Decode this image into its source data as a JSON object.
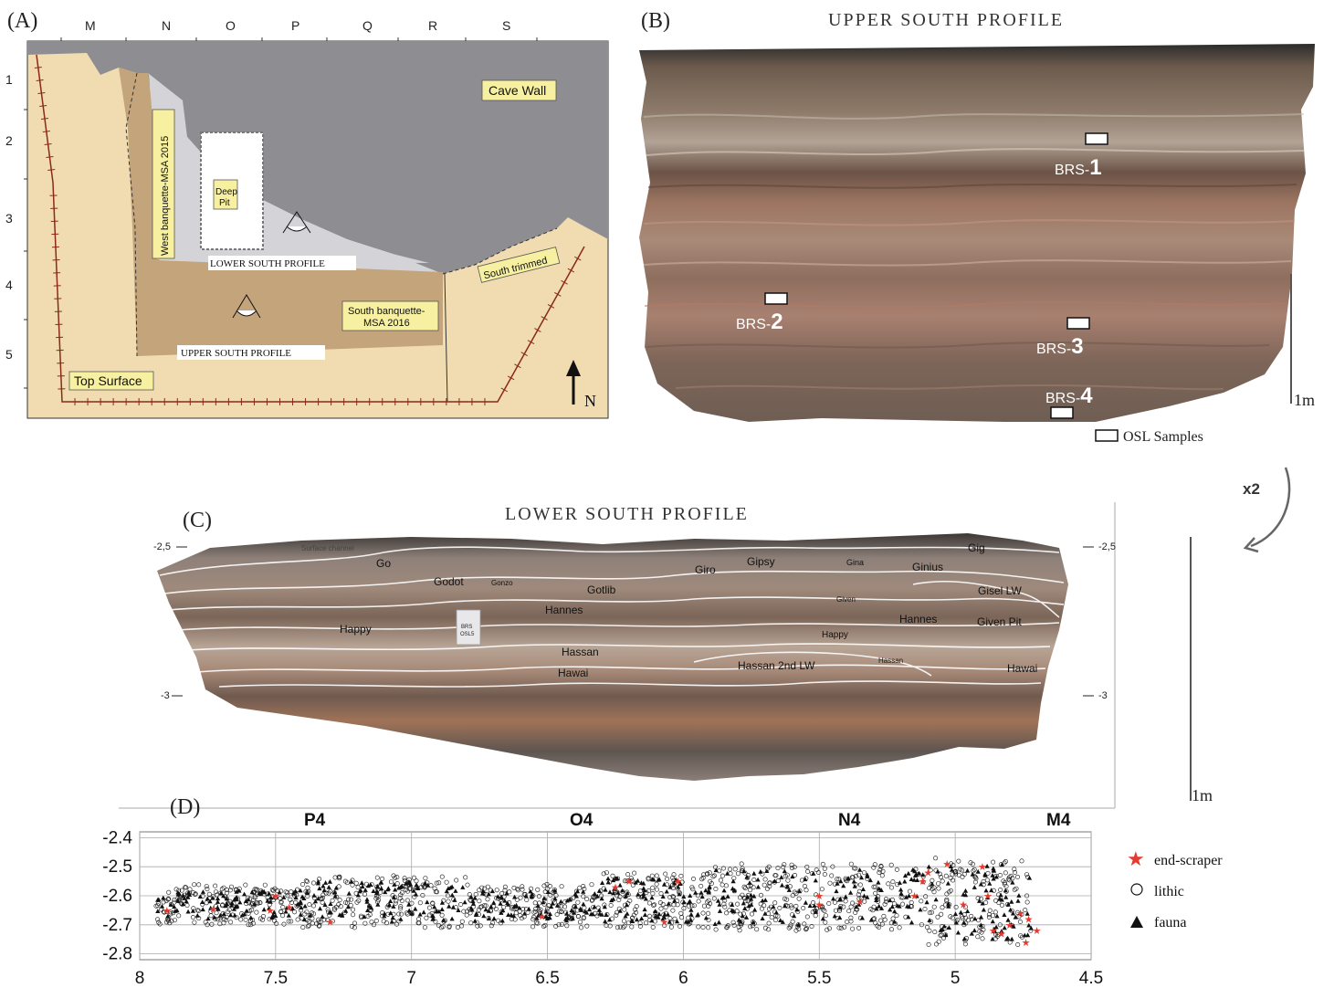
{
  "panel_a": {
    "label": "(A)",
    "grid_columns": [
      "M",
      "N",
      "O",
      "P",
      "Q",
      "R",
      "S"
    ],
    "grid_rows": [
      "1",
      "2",
      "3",
      "4",
      "5"
    ],
    "labels": {
      "cave_wall": "Cave Wall",
      "west_banquette": "West banquette-MSA 2015",
      "deep_pit_line1": "Deep",
      "deep_pit_line2": "Pit",
      "lower_south_profile": "LOWER SOUTH PROFILE",
      "upper_south_profile": "UPPER SOUTH PROFILE",
      "south_trimmed": "South trimmed",
      "south_banquette_line1": "South banquette-",
      "south_banquette_line2": "MSA 2016",
      "top_surface": "Top Surface",
      "north": "N"
    },
    "colors": {
      "cave_wall": "#8e8e92",
      "top_surface": "#f0dcb0",
      "banquette": "#c4a47a",
      "lower_area": "#d4d4d8",
      "label_box": "#f6f0a0"
    }
  },
  "panel_b": {
    "label": "(B)",
    "title": "UPPER SOUTH PROFILE",
    "samples": [
      {
        "prefix": "BRS-",
        "num": "1"
      },
      {
        "prefix": "BRS-",
        "num": "2"
      },
      {
        "prefix": "BRS-",
        "num": "3"
      },
      {
        "prefix": "BRS-",
        "num": "4"
      }
    ],
    "scale": "1m",
    "legend": "OSL Samples",
    "arrow_label": "x2"
  },
  "panel_c": {
    "label": "(C)",
    "title": "LOWER SOUTH PROFILE",
    "depth_left": [
      "-2,5",
      "-3"
    ],
    "depth_right": [
      "-2,5",
      "-3"
    ],
    "top_label": "Surface channel",
    "units": [
      "Go",
      "Godot",
      "Gonzo",
      "Gotlib",
      "Giro",
      "Gipsy",
      "Gina",
      "Ginius",
      "Gig",
      "Gisel LW",
      "Given",
      "Hannes",
      "Hannes",
      "Happy",
      "Happy",
      "Given Pit",
      "Hassan",
      "Hassan 2nd LW",
      "Hassan",
      "Hawai",
      "Hawai"
    ],
    "sample_tag_line1": "BRS",
    "sample_tag_line2": "OSL5",
    "scale": "1m"
  },
  "chart_data": {
    "type": "scatter",
    "label": "(D)",
    "squares": [
      "P4",
      "O4",
      "N4",
      "M4"
    ],
    "x_ticks": [
      "8",
      "7.5",
      "7",
      "6.5",
      "6",
      "5.5",
      "5",
      "4.5"
    ],
    "y_ticks": [
      "-2.4",
      "-2.5",
      "-2.6",
      "-2.7",
      "-2.8"
    ],
    "xlim": [
      8,
      4.5
    ],
    "ylim": [
      -2.82,
      -2.38
    ],
    "series": [
      {
        "name": "end-scraper",
        "marker": "star",
        "color": "#e53a2e"
      },
      {
        "name": "lithic",
        "marker": "circle",
        "color": "#000000"
      },
      {
        "name": "fauna",
        "marker": "triangle",
        "color": "#000000"
      }
    ],
    "end_scraper_points": [
      [
        7.9,
        -2.65
      ],
      [
        7.73,
        -2.645
      ],
      [
        7.5,
        -2.6
      ],
      [
        7.45,
        -2.64
      ],
      [
        7.52,
        -2.65
      ],
      [
        7.3,
        -2.69
      ],
      [
        6.52,
        -2.67
      ],
      [
        6.25,
        -2.57
      ],
      [
        6.2,
        -2.55
      ],
      [
        6.07,
        -2.69
      ],
      [
        6.02,
        -2.55
      ],
      [
        5.5,
        -2.63
      ],
      [
        5.5,
        -2.6
      ],
      [
        5.35,
        -2.62
      ],
      [
        5.15,
        -2.6
      ],
      [
        5.12,
        -2.55
      ],
      [
        5.1,
        -2.52
      ],
      [
        5.03,
        -2.49
      ],
      [
        4.97,
        -2.63
      ],
      [
        4.9,
        -2.5
      ],
      [
        4.88,
        -2.6
      ],
      [
        4.86,
        -2.72
      ],
      [
        4.8,
        -2.7
      ],
      [
        4.76,
        -2.66
      ],
      [
        4.73,
        -2.68
      ],
      [
        4.74,
        -2.76
      ],
      [
        4.83,
        -2.73
      ],
      [
        4.7,
        -2.72
      ]
    ]
  }
}
